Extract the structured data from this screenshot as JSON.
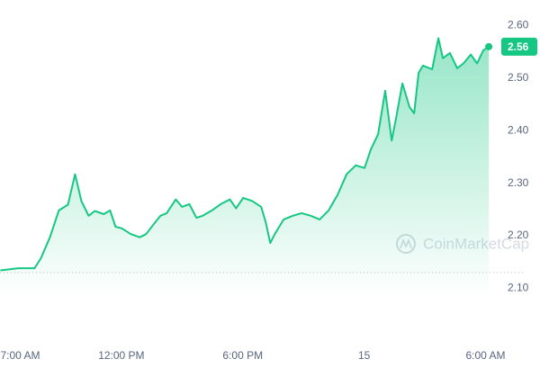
{
  "chart_data": {
    "type": "line",
    "x": [
      6.02,
      6.91,
      7.71,
      8.02,
      8.47,
      8.91,
      9.36,
      9.71,
      10.02,
      10.38,
      10.69,
      11.13,
      11.44,
      11.71,
      12.02,
      12.47,
      12.91,
      13.22,
      13.58,
      13.93,
      14.24,
      14.69,
      15.0,
      15.36,
      15.71,
      16.02,
      16.47,
      16.91,
      17.36,
      17.67,
      18.02,
      18.47,
      18.91,
      19.13,
      19.36,
      19.58,
      20.02,
      20.47,
      20.91,
      21.36,
      21.8,
      22.24,
      22.69,
      23.13,
      23.58,
      24.02,
      24.33,
      24.69,
      25.04,
      25.36,
      25.58,
      25.89,
      26.24,
      26.47,
      26.69,
      26.91,
      27.36,
      27.67,
      27.89,
      28.24,
      28.6,
      28.91,
      29.27,
      29.58,
      29.89,
      30.16
    ],
    "series": [
      {
        "color": "#16c784",
        "values": [
          2.134,
          2.138,
          2.138,
          2.157,
          2.197,
          2.248,
          2.259,
          2.317,
          2.266,
          2.238,
          2.247,
          2.241,
          2.248,
          2.217,
          2.214,
          2.203,
          2.197,
          2.203,
          2.221,
          2.238,
          2.243,
          2.269,
          2.255,
          2.26,
          2.234,
          2.238,
          2.248,
          2.26,
          2.269,
          2.252,
          2.272,
          2.266,
          2.255,
          2.226,
          2.186,
          2.203,
          2.231,
          2.238,
          2.243,
          2.238,
          2.231,
          2.248,
          2.278,
          2.317,
          2.334,
          2.329,
          2.364,
          2.393,
          2.476,
          2.381,
          2.424,
          2.49,
          2.445,
          2.433,
          2.51,
          2.524,
          2.517,
          2.576,
          2.538,
          2.548,
          2.519,
          2.528,
          2.545,
          2.528,
          2.553,
          2.56
        ]
      }
    ],
    "xlim": [
      6,
      30.2
    ],
    "xticks": [
      {
        "value": 7,
        "label": "7:00 AM"
      },
      {
        "value": 12,
        "label": "12:00 PM"
      },
      {
        "value": 18,
        "label": "6:00 PM"
      },
      {
        "value": 24,
        "label": "15"
      },
      {
        "value": 30,
        "label": "6:00 AM"
      }
    ],
    "ylim": [
      2.08,
      2.63
    ],
    "yticks": [
      {
        "value": 2.1,
        "label": "2.10"
      },
      {
        "value": 2.2,
        "label": "2.20"
      },
      {
        "value": 2.3,
        "label": "2.30"
      },
      {
        "value": 2.4,
        "label": "2.40"
      },
      {
        "value": 2.5,
        "label": "2.50"
      },
      {
        "value": 2.6,
        "label": "2.60"
      }
    ],
    "baseline": 2.13,
    "current_price": 2.56,
    "watermark": "CoinMarketCap",
    "grid": false
  }
}
